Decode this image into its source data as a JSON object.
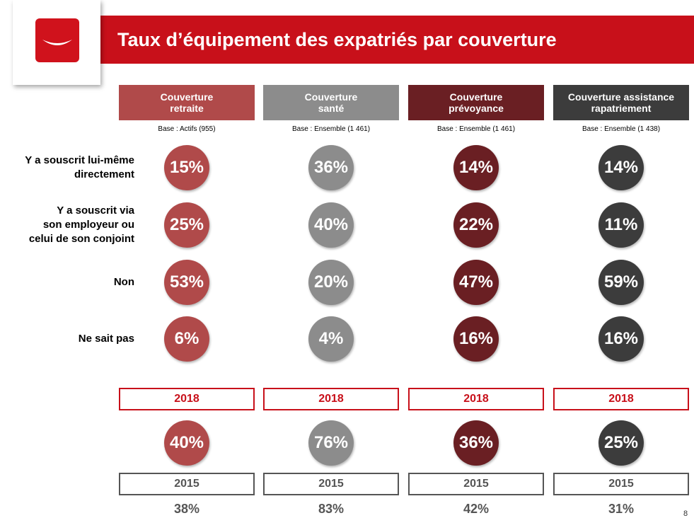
{
  "header": {
    "title": "Taux d’équipement des expatriés par couverture"
  },
  "rows": [
    {
      "label_lines": [
        "Y a souscrit lui-même",
        "directement"
      ]
    },
    {
      "label_lines": [
        "Y a souscrit via",
        "son employeur ou",
        "celui de son conjoint"
      ]
    },
    {
      "label_lines": [
        "Non"
      ]
    },
    {
      "label_lines": [
        "Ne sait pas"
      ]
    }
  ],
  "columns": [
    {
      "title_lines": [
        "Couverture",
        "retraite"
      ],
      "base": "Base :  Actifs (955)",
      "color": "#b04a4a",
      "values": [
        "15%",
        "25%",
        "53%",
        "6%"
      ],
      "year_current": "2018",
      "value_current": "40%",
      "year_previous": "2015",
      "value_previous": "38%"
    },
    {
      "title_lines": [
        "Couverture",
        "santé"
      ],
      "base": "Base :  Ensemble (1 461)",
      "color": "#8c8c8c",
      "values": [
        "36%",
        "40%",
        "20%",
        "4%"
      ],
      "year_current": "2018",
      "value_current": "76%",
      "year_previous": "2015",
      "value_previous": "83%"
    },
    {
      "title_lines": [
        "Couverture",
        "prévoyance"
      ],
      "base": "Base :  Ensemble (1 461)",
      "color": "#6a1f23",
      "values": [
        "14%",
        "22%",
        "47%",
        "16%"
      ],
      "year_current": "2018",
      "value_current": "36%",
      "year_previous": "2015",
      "value_previous": "42%"
    },
    {
      "title_lines": [
        "Couverture assistance",
        "rapatriement"
      ],
      "base": "Base :  Ensemble (1 438)",
      "color": "#3c3c3c",
      "values": [
        "14%",
        "11%",
        "59%",
        "16%"
      ],
      "year_current": "2018",
      "value_current": "25%",
      "year_previous": "2015",
      "value_previous": "31%"
    }
  ],
  "page_number": "8"
}
